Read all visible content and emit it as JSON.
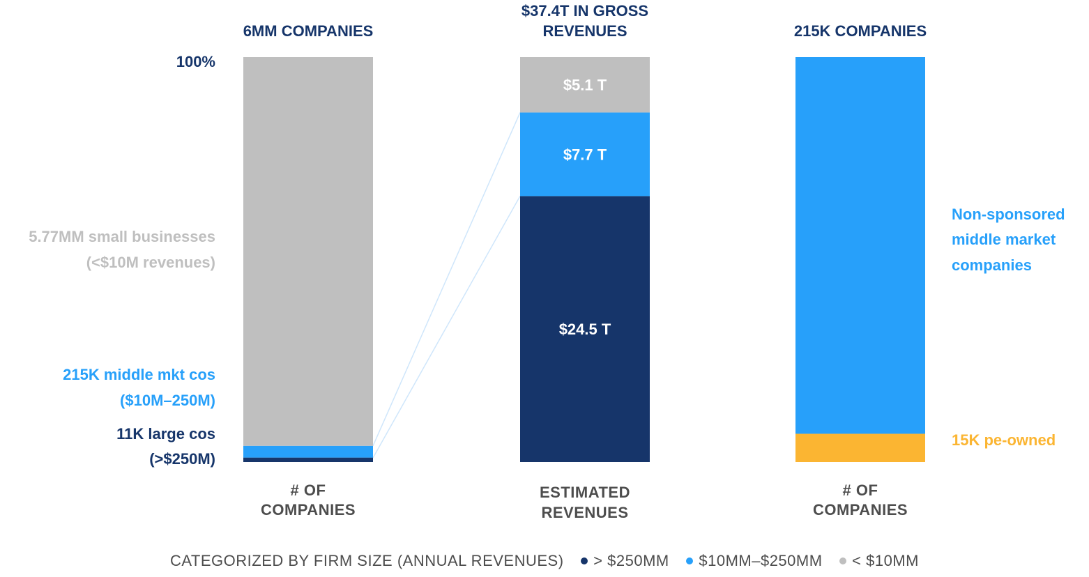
{
  "chart_data": {
    "type": "bar",
    "stacked": true,
    "percent_scale": true,
    "y_top_label": "100%",
    "colors": {
      "large": "#16356a",
      "middle": "#27a0fa",
      "small": "#bfbfbf",
      "pe_owned": "#fbb532",
      "connector": "#cfe6fb"
    },
    "bars": [
      {
        "id": "companies_all",
        "header": "6MM COMPANIES",
        "category_label": [
          "# OF",
          "COMPANIES"
        ],
        "segments": [
          {
            "key": "large",
            "value": 11
          },
          {
            "key": "middle",
            "value": 29
          },
          {
            "key": "small",
            "value": 960
          }
        ]
      },
      {
        "id": "revenues",
        "header": [
          "$37.4T IN GROSS",
          "REVENUES"
        ],
        "category_label": [
          "ESTIMATED",
          "REVENUES"
        ],
        "segments": [
          {
            "key": "large",
            "value": 24.5,
            "label": "$24.5 T"
          },
          {
            "key": "middle",
            "value": 7.7,
            "label": "$7.7 T"
          },
          {
            "key": "small",
            "value": 5.1,
            "label": "$5.1 T"
          }
        ]
      },
      {
        "id": "middle_market",
        "header": "215K COMPANIES",
        "category_label": [
          "# OF",
          "COMPANIES"
        ],
        "segments": [
          {
            "key": "pe_owned",
            "value": 15
          },
          {
            "key": "middle",
            "value": 200
          }
        ]
      }
    ],
    "left_annotations": [
      {
        "lines": [
          "5.77MM small businesses",
          "(<$10M revenues)"
        ],
        "color_key": "small"
      },
      {
        "lines": [
          "215K middle mkt cos",
          "($10M–250M)"
        ],
        "color_key": "middle"
      },
      {
        "lines": [
          "11K large cos",
          "(>$250M)"
        ],
        "color_key": "large"
      }
    ],
    "right_annotations": [
      {
        "lines": [
          "Non-sponsored",
          "middle market",
          "companies"
        ],
        "color_key": "middle"
      },
      {
        "lines": [
          "15K pe-owned"
        ],
        "color_key": "pe_owned"
      }
    ],
    "legend": {
      "title": "CATEGORIZED BY FIRM SIZE (ANNUAL REVENUES)",
      "items": [
        {
          "label": "> $250MM",
          "color_key": "large"
        },
        {
          "label": "$10MM–$250MM",
          "color_key": "middle"
        },
        {
          "label": "< $10MM",
          "color_key": "small"
        }
      ]
    }
  }
}
